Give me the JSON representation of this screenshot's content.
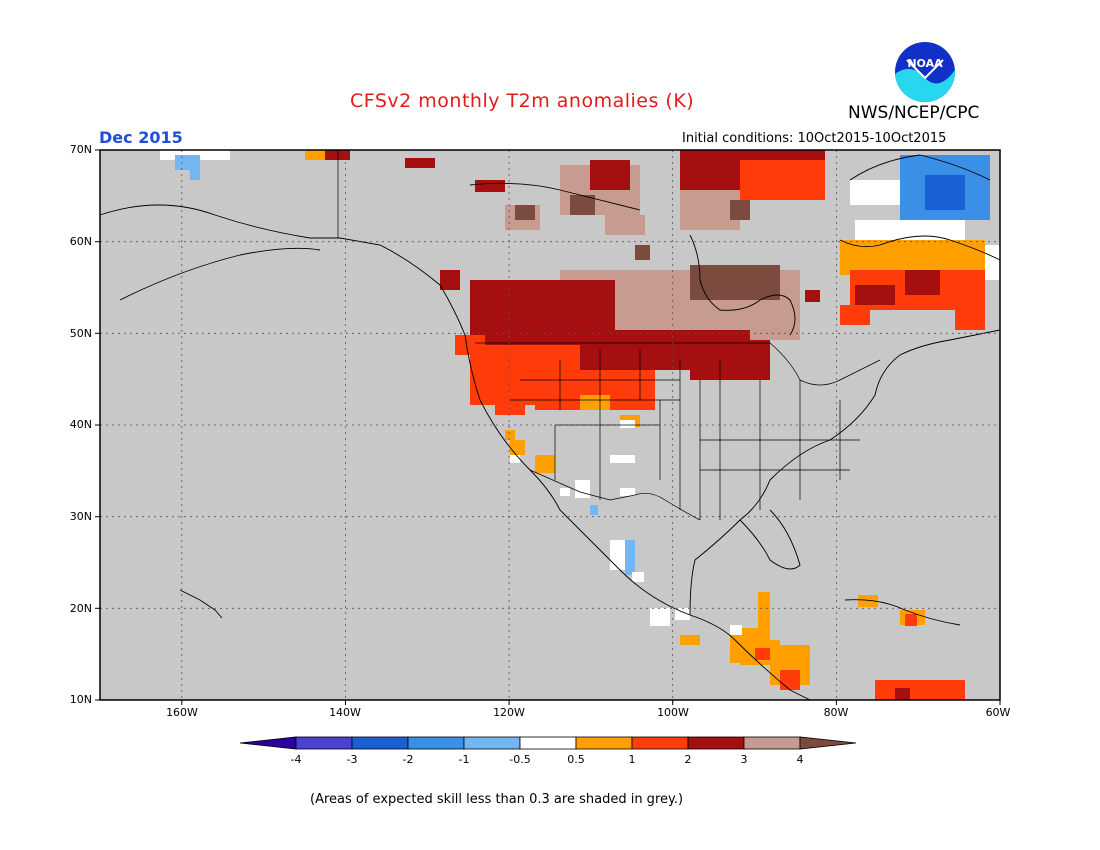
{
  "title": "CFSv2 monthly T2m anomalies (K)",
  "period": "Dec 2015",
  "initial_conditions": "Initial conditions: 10Oct2015-10Oct2015",
  "agency": "NWS/NCEP/CPC",
  "logo_text": "NOAA",
  "footer": "(Areas of expected skill less than 0.3 are shaded in grey.)",
  "map": {
    "projection": "equirectangular",
    "extent": {
      "lon_min": -170,
      "lon_max": -60,
      "lat_min": 10,
      "lat_max": 70
    },
    "background_color": "#c8c8c8",
    "lat_labels": [
      "70N",
      "60N",
      "50N",
      "40N",
      "30N",
      "20N",
      "10N"
    ],
    "lon_labels": [
      "160W",
      "140W",
      "120W",
      "100W",
      "80W",
      "60W"
    ]
  },
  "colorbar": {
    "labels": [
      "-4",
      "-3",
      "-2",
      "-1",
      "-0.5",
      "0.5",
      "1",
      "2",
      "3",
      "4"
    ],
    "colors": [
      "#2c009c",
      "#4b3fd4",
      "#1a5fd6",
      "#3a8fe6",
      "#74b6f2",
      "#ffffff",
      "#ff9f00",
      "#ff3c0a",
      "#a50f0f",
      "#c89b90",
      "#7a4b3e"
    ]
  }
}
